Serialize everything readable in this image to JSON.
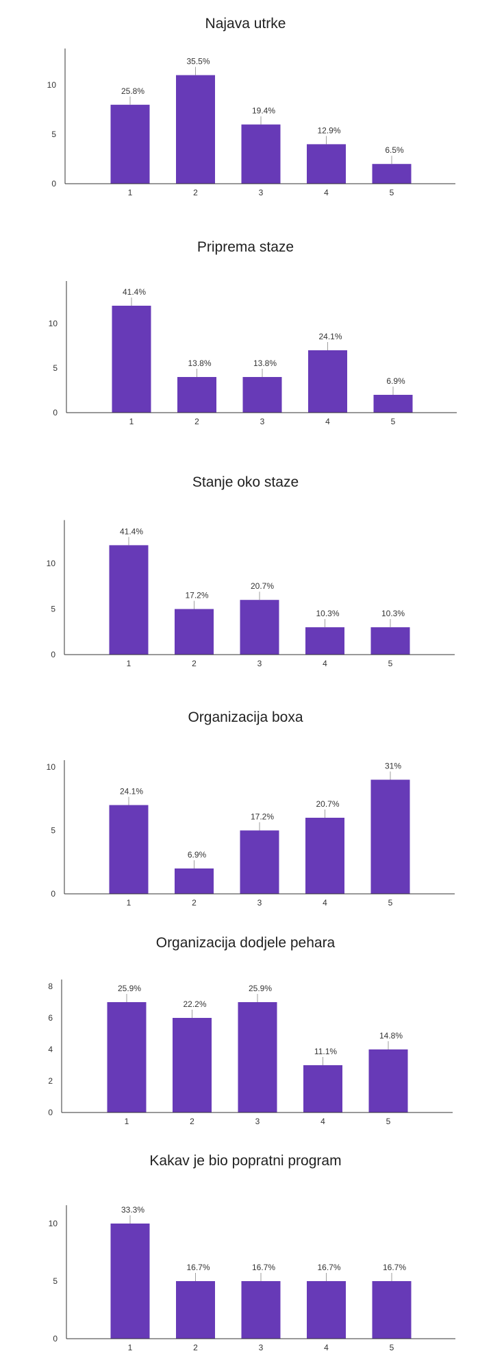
{
  "bar_color": "#673ab7",
  "chart_data": [
    {
      "type": "bar",
      "title": "Najava utrke",
      "categories": [
        "1",
        "2",
        "3",
        "4",
        "5"
      ],
      "values": [
        8,
        11,
        6,
        4,
        2
      ],
      "labels": [
        "25.8%",
        "35.5%",
        "19.4%",
        "12.9%",
        "6.5%"
      ],
      "yticks": [
        "0",
        "5",
        "10"
      ],
      "ylim": [
        0,
        13
      ],
      "xlabel": "",
      "ylabel": "",
      "grid": false,
      "legend": "none"
    },
    {
      "type": "bar",
      "title": "Priprema staze",
      "categories": [
        "1",
        "2",
        "3",
        "4",
        "5"
      ],
      "values": [
        12,
        4,
        4,
        7,
        2
      ],
      "labels": [
        "41.4%",
        "13.8%",
        "13.8%",
        "24.1%",
        "6.9%"
      ],
      "yticks": [
        "0",
        "5",
        "10"
      ],
      "ylim": [
        0,
        14
      ],
      "xlabel": "",
      "ylabel": "",
      "grid": false,
      "legend": "none"
    },
    {
      "type": "bar",
      "title": "Stanje oko staze",
      "categories": [
        "1",
        "2",
        "3",
        "4",
        "5"
      ],
      "values": [
        12,
        5,
        6,
        3,
        3
      ],
      "labels": [
        "41.4%",
        "17.2%",
        "20.7%",
        "10.3%",
        "10.3%"
      ],
      "yticks": [
        "0",
        "5",
        "10"
      ],
      "ylim": [
        0,
        14
      ],
      "xlabel": "",
      "ylabel": "",
      "grid": false,
      "legend": "none"
    },
    {
      "type": "bar",
      "title": "Organizacija boxa",
      "categories": [
        "1",
        "2",
        "3",
        "4",
        "5"
      ],
      "values": [
        7,
        2,
        5,
        6,
        9
      ],
      "labels": [
        "24.1%",
        "6.9%",
        "17.2%",
        "20.7%",
        "31%"
      ],
      "yticks": [
        "0",
        "5",
        "10"
      ],
      "ylim": [
        0,
        10
      ],
      "xlabel": "",
      "ylabel": "",
      "grid": false,
      "legend": "none"
    },
    {
      "type": "bar",
      "title": "Organizacija dodjele pehara",
      "categories": [
        "1",
        "2",
        "3",
        "4",
        "5"
      ],
      "values": [
        7,
        6,
        7,
        3,
        4
      ],
      "labels": [
        "25.9%",
        "22.2%",
        "25.9%",
        "11.1%",
        "14.8%"
      ],
      "yticks": [
        "0",
        "2",
        "4",
        "6",
        "8"
      ],
      "ylim": [
        0,
        8
      ],
      "xlabel": "",
      "ylabel": "",
      "grid": false,
      "legend": "none"
    },
    {
      "type": "bar",
      "title": "Kakav je bio popratni program",
      "categories": [
        "1",
        "2",
        "3",
        "4",
        "5"
      ],
      "values": [
        10,
        5,
        5,
        5,
        5
      ],
      "labels": [
        "33.3%",
        "16.7%",
        "16.7%",
        "16.7%",
        "16.7%"
      ],
      "yticks": [
        "0",
        "5",
        "10"
      ],
      "ylim": [
        0,
        11
      ],
      "xlabel": "",
      "ylabel": "",
      "grid": false,
      "legend": "none"
    }
  ]
}
